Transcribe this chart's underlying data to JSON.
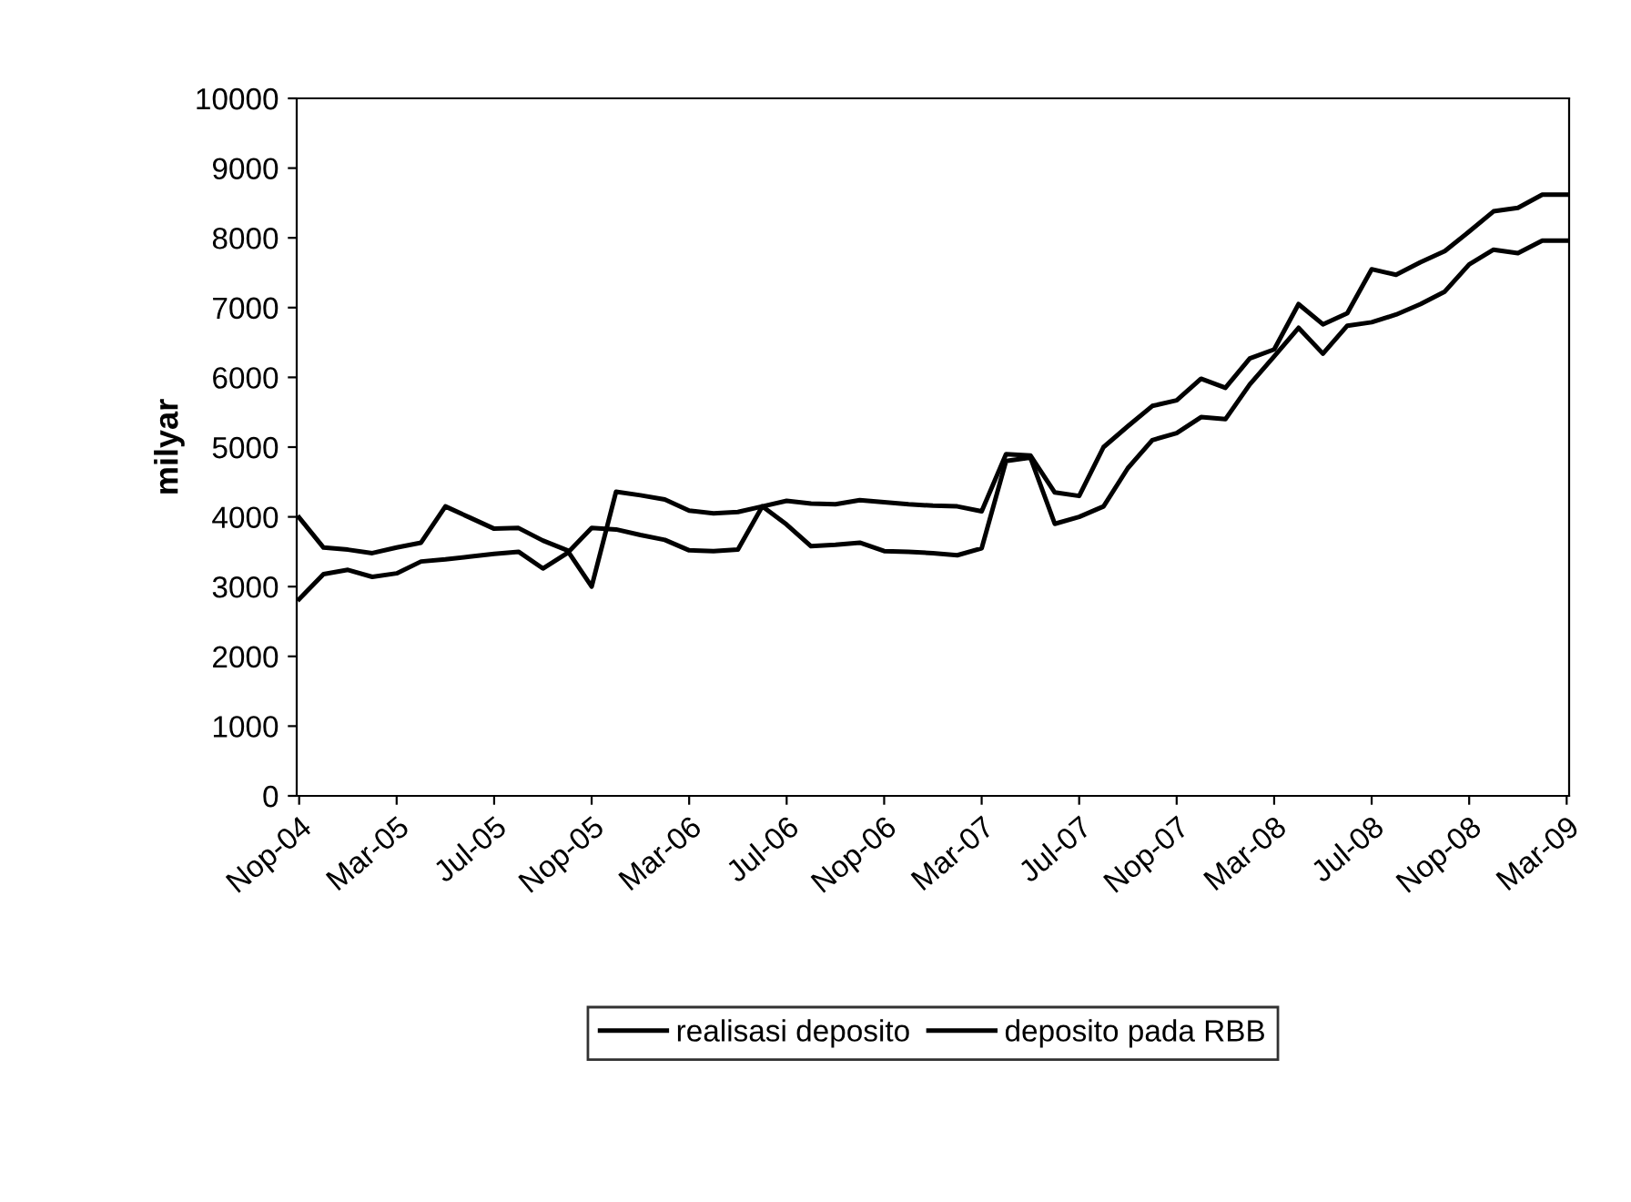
{
  "chart_data": {
    "type": "line",
    "categories": [
      "Nop-04",
      null,
      null,
      null,
      "Mar-05",
      null,
      null,
      null,
      "Jul-05",
      null,
      null,
      null,
      "Nop-05",
      null,
      null,
      null,
      "Mar-06",
      null,
      null,
      null,
      "Jul-06",
      null,
      null,
      null,
      "Nop-06",
      null,
      null,
      null,
      "Mar-07",
      null,
      null,
      null,
      "Jul-07",
      null,
      null,
      null,
      "Nop-07",
      null,
      null,
      null,
      "Mar-08",
      null,
      null,
      null,
      "Jul-08",
      null,
      null,
      null,
      "Nop-08",
      null,
      null,
      null,
      "Mar-09"
    ],
    "ylabel": "milyar",
    "ylim": [
      0,
      10000
    ],
    "yticks": [
      0,
      1000,
      2000,
      3000,
      4000,
      5000,
      6000,
      7000,
      8000,
      9000,
      10000
    ],
    "series": [
      {
        "name": "realisasi deposito",
        "color": "#000000",
        "values": [
          2820,
          3180,
          3240,
          3140,
          3190,
          3360,
          3390,
          3430,
          3470,
          3500,
          3260,
          3480,
          3840,
          3820,
          3740,
          3670,
          3520,
          3510,
          3530,
          4150,
          3890,
          3580,
          3600,
          3630,
          3510,
          3500,
          3480,
          3450,
          3550,
          4800,
          4850,
          3900,
          4000,
          4150,
          4700,
          5100,
          5200,
          5430,
          5400,
          5900,
          6300,
          6710,
          6340,
          6740,
          6790,
          6900,
          7050,
          7230,
          7620,
          7830,
          7780,
          7960,
          7960
        ]
      },
      {
        "name": "deposito pada RBB",
        "color": "#000000",
        "values": [
          3990,
          3560,
          3530,
          3480,
          3560,
          3630,
          4150,
          3990,
          3830,
          3840,
          3660,
          3520,
          3000,
          4360,
          4310,
          4250,
          4090,
          4050,
          4070,
          4150,
          4230,
          4190,
          4180,
          4240,
          4210,
          4180,
          4160,
          4150,
          4080,
          4900,
          4880,
          4350,
          4300,
          5000,
          5300,
          5590,
          5670,
          5980,
          5850,
          6270,
          6400,
          7050,
          6760,
          6920,
          7550,
          7470,
          7650,
          7810,
          8090,
          8380,
          8430,
          8620,
          8620
        ]
      }
    ],
    "legend": "bottom",
    "grid": false,
    "marker": "none",
    "line_style": "solid"
  }
}
